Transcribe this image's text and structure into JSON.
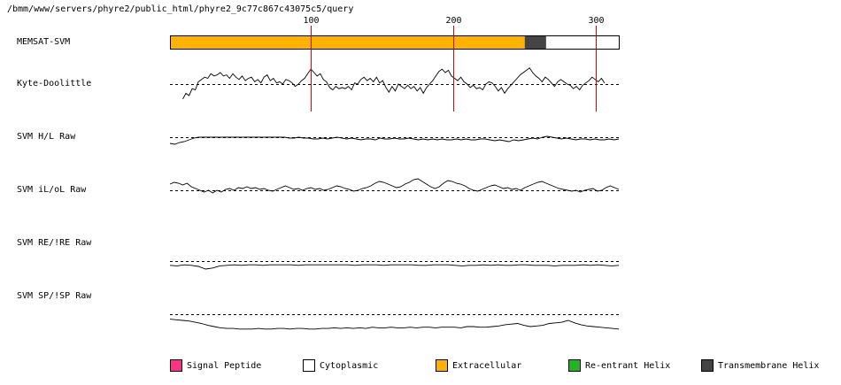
{
  "header_path": "/bmm/www/servers/phyre2/public_html/phyre2_9c77c867c43075c5/query",
  "chart_data": {
    "type": "line",
    "x_range": [
      1,
      316
    ],
    "ticks": [
      {
        "value": 100,
        "label": "100"
      },
      {
        "value": 200,
        "label": "200"
      },
      {
        "value": 300,
        "label": "300"
      }
    ],
    "tracks": [
      {
        "name": "MEMSAT-SVM",
        "kind": "segments",
        "segments": [
          {
            "start": 1,
            "end": 250,
            "class": "Extracellular",
            "color": "#ffb300"
          },
          {
            "start": 250,
            "end": 265,
            "class": "Transmembrane Helix",
            "color": "#444444"
          },
          {
            "start": 265,
            "end": 316,
            "class": "Cytoplasmic",
            "color": "#ffffff"
          }
        ]
      },
      {
        "name": "Kyte-Doolittle",
        "kind": "line",
        "x_start": 10,
        "x_end": 306,
        "values": [
          -1.3,
          -0.8,
          -1.0,
          -0.4,
          -0.5,
          0.2,
          0.4,
          0.6,
          0.5,
          0.9,
          0.7,
          0.8,
          1.0,
          0.7,
          0.8,
          0.5,
          0.9,
          0.6,
          0.4,
          0.7,
          0.3,
          0.5,
          0.6,
          0.2,
          0.4,
          0.1,
          0.6,
          0.8,
          0.3,
          0.5,
          0.1,
          0.2,
          0.0,
          0.4,
          0.3,
          0.1,
          -0.2,
          0.0,
          0.3,
          0.5,
          0.9,
          1.3,
          1.0,
          0.7,
          0.9,
          0.4,
          0.2,
          -0.3,
          -0.5,
          -0.2,
          -0.4,
          -0.3,
          -0.4,
          -0.2,
          -0.5,
          0.1,
          0.0,
          0.4,
          0.6,
          0.3,
          0.5,
          0.2,
          0.6,
          0.1,
          0.3,
          -0.3,
          -0.7,
          -0.2,
          -0.6,
          0.0,
          -0.2,
          -0.4,
          -0.1,
          -0.4,
          -0.2,
          -0.6,
          -0.3,
          -0.8,
          -0.3,
          0.0,
          0.3,
          0.7,
          1.1,
          1.3,
          1.0,
          1.2,
          0.7,
          0.5,
          0.3,
          0.6,
          0.2,
          0.0,
          -0.3,
          -0.1,
          -0.4,
          -0.3,
          -0.5,
          0.0,
          0.2,
          0.1,
          -0.2,
          -0.6,
          -0.3,
          -0.8,
          -0.4,
          -0.1,
          0.2,
          0.5,
          0.8,
          1.0,
          1.2,
          1.4,
          1.0,
          0.7,
          0.5,
          0.2,
          0.6,
          0.4,
          0.1,
          -0.2,
          0.2,
          0.4,
          0.2,
          0.0,
          -0.1,
          -0.4,
          -0.2,
          -0.5,
          -0.1,
          0.1,
          0.3,
          0.6,
          0.4,
          0.2,
          0.5,
          0.1
        ]
      },
      {
        "name": "SVM H/L Raw",
        "kind": "line",
        "x_start": 1,
        "x_end": 316,
        "values": [
          -0.7,
          -0.8,
          -0.6,
          -0.5,
          -0.3,
          -0.1,
          0.0,
          0.0,
          0.0,
          0.0,
          0.0,
          0.0,
          0.0,
          0.0,
          0.0,
          0.0,
          0.0,
          0.0,
          0.0,
          0.0,
          0.0,
          0.0,
          0.0,
          0.0,
          0.0,
          -0.1,
          -0.1,
          0.0,
          -0.1,
          -0.1,
          -0.2,
          -0.2,
          -0.1,
          -0.2,
          -0.1,
          0.0,
          -0.1,
          -0.2,
          -0.1,
          -0.2,
          -0.3,
          -0.2,
          -0.2,
          -0.3,
          -0.1,
          -0.2,
          -0.2,
          -0.1,
          -0.2,
          -0.2,
          -0.1,
          -0.2,
          -0.3,
          -0.2,
          -0.3,
          -0.2,
          -0.3,
          -0.2,
          -0.3,
          -0.3,
          -0.2,
          -0.3,
          -0.2,
          -0.3,
          -0.3,
          -0.2,
          -0.2,
          -0.3,
          -0.4,
          -0.3,
          -0.4,
          -0.5,
          -0.3,
          -0.4,
          -0.3,
          -0.2,
          -0.1,
          -0.2,
          0.0,
          0.1,
          0.0,
          -0.1,
          -0.2,
          -0.1,
          -0.2,
          -0.3,
          -0.2,
          -0.2,
          -0.3,
          -0.2,
          -0.3,
          -0.3,
          -0.2,
          -0.3,
          -0.2
        ]
      },
      {
        "name": "SVM iL/oL Raw",
        "kind": "line",
        "x_start": 1,
        "x_end": 316,
        "values": [
          0.7,
          0.9,
          0.8,
          0.6,
          0.8,
          0.4,
          0.2,
          0.0,
          -0.2,
          0.0,
          -0.3,
          0.0,
          -0.2,
          0.1,
          0.2,
          0.0,
          0.3,
          0.2,
          0.4,
          0.2,
          0.3,
          0.1,
          0.2,
          0.0,
          -0.1,
          0.1,
          0.3,
          0.5,
          0.3,
          0.1,
          0.2,
          0.0,
          0.2,
          0.3,
          0.1,
          0.2,
          0.0,
          0.1,
          0.3,
          0.5,
          0.4,
          0.2,
          0.1,
          -0.1,
          0.0,
          0.2,
          0.3,
          0.5,
          0.8,
          1.0,
          0.9,
          0.7,
          0.5,
          0.3,
          0.4,
          0.7,
          0.9,
          1.2,
          1.3,
          1.0,
          0.7,
          0.4,
          0.2,
          0.4,
          0.8,
          1.1,
          1.0,
          0.8,
          0.7,
          0.5,
          0.2,
          0.0,
          -0.1,
          0.1,
          0.3,
          0.5,
          0.6,
          0.4,
          0.2,
          0.3,
          0.1,
          0.2,
          0.0,
          0.3,
          0.5,
          0.7,
          0.9,
          1.0,
          0.8,
          0.6,
          0.4,
          0.2,
          0.1,
          0.0,
          -0.1,
          0.0,
          -0.2,
          0.0,
          0.1,
          0.2,
          -0.1,
          0.0,
          0.3,
          0.5,
          0.3,
          0.1
        ]
      },
      {
        "name": "SVM RE/!RE Raw",
        "kind": "line",
        "x_start": 1,
        "x_end": 316,
        "values": [
          -0.8,
          -0.9,
          -0.7,
          -0.8,
          -1.0,
          -1.5,
          -1.3,
          -0.9,
          -0.8,
          -0.7,
          -0.8,
          -0.7,
          -0.7,
          -0.8,
          -0.7,
          -0.7,
          -0.7,
          -0.7,
          -0.8,
          -0.7,
          -0.7,
          -0.7,
          -0.7,
          -0.7,
          -0.7,
          -0.7,
          -0.8,
          -0.7,
          -0.7,
          -0.7,
          -0.8,
          -0.7,
          -0.7,
          -0.7,
          -0.7,
          -0.8,
          -0.8,
          -0.7,
          -0.7,
          -0.7,
          -0.8,
          -0.9,
          -0.8,
          -0.8,
          -0.7,
          -0.8,
          -0.7,
          -0.8,
          -0.8,
          -0.7,
          -0.7,
          -0.8,
          -0.8,
          -0.8,
          -0.9,
          -0.8,
          -0.8,
          -0.8,
          -0.7,
          -0.8,
          -0.7,
          -0.8,
          -0.9,
          -0.8
        ]
      },
      {
        "name": "SVM SP/!SP Raw",
        "kind": "line",
        "x_start": 1,
        "x_end": 316,
        "values": [
          -0.8,
          -0.9,
          -1.0,
          -1.1,
          -1.3,
          -1.5,
          -1.8,
          -2.0,
          -2.2,
          -2.3,
          -2.3,
          -2.4,
          -2.4,
          -2.4,
          -2.3,
          -2.4,
          -2.4,
          -2.3,
          -2.3,
          -2.4,
          -2.3,
          -2.3,
          -2.4,
          -2.4,
          -2.3,
          -2.3,
          -2.2,
          -2.3,
          -2.2,
          -2.3,
          -2.2,
          -2.3,
          -2.1,
          -2.2,
          -2.2,
          -2.1,
          -2.2,
          -2.2,
          -2.1,
          -2.2,
          -2.1,
          -2.1,
          -2.2,
          -2.1,
          -2.1,
          -2.1,
          -2.2,
          -2.0,
          -2.0,
          -2.1,
          -2.1,
          -2.0,
          -1.9,
          -1.7,
          -1.6,
          -1.5,
          -1.8,
          -2.0,
          -1.9,
          -1.8,
          -1.5,
          -1.4,
          -1.3,
          -1.0,
          -1.4,
          -1.7,
          -1.9,
          -2.0,
          -2.1,
          -2.2,
          -2.3,
          -2.4
        ]
      }
    ],
    "legend": [
      {
        "label": "Signal Peptide",
        "color": "#ff3385"
      },
      {
        "label": "Cytoplasmic",
        "color": "#ffffff"
      },
      {
        "label": "Extracellular",
        "color": "#ffb300"
      },
      {
        "label": "Re-entrant Helix",
        "color": "#22b522"
      },
      {
        "label": "Transmembrane Helix",
        "color": "#444444"
      }
    ]
  }
}
